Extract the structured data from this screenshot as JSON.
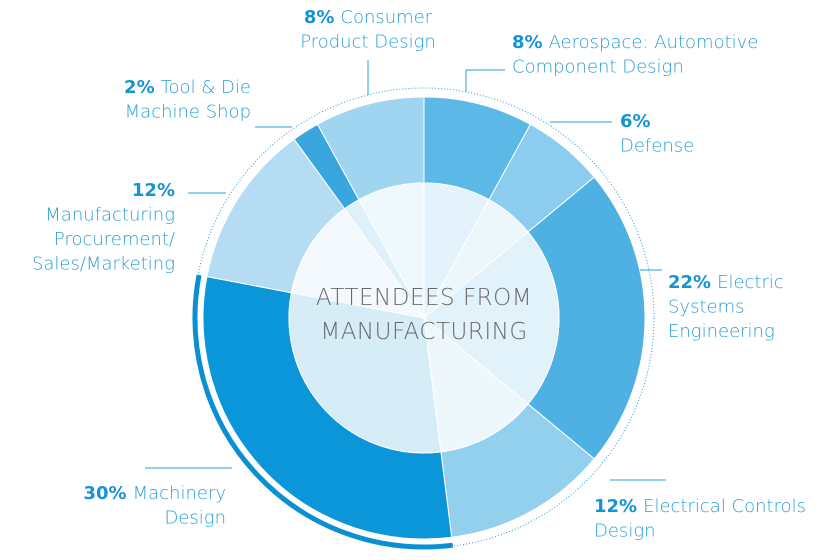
{
  "chart_data": {
    "type": "donut",
    "title": [
      "ATTENDEES FROM",
      "MANUFACTURING"
    ],
    "categories": [
      [
        "Aerospace: Automotive",
        "Component Design"
      ],
      [
        "Defense"
      ],
      [
        "Electric",
        "Systems",
        "Engineering"
      ],
      [
        "Electrical Controls",
        "Design"
      ],
      [
        "Machinery",
        "Design"
      ],
      [
        "Manufacturing",
        "Procurement/",
        "Sales/Marketing"
      ],
      [
        "Tool & Die",
        "Machine Shop"
      ],
      [
        "Consumer",
        "Product Design"
      ]
    ],
    "values": [
      8,
      6,
      22,
      12,
      30,
      12,
      2,
      8
    ],
    "value_labels": [
      "8%",
      "6%",
      "22%",
      "12%",
      "30%",
      "12%",
      "2%",
      "8%"
    ],
    "colors": [
      "#5cb9e7",
      "#8ccdef",
      "#4eb0e3",
      "#93d0ee",
      "#0a96d8",
      "#b5dcf2",
      "#39a6de",
      "#a0d5f1"
    ]
  }
}
